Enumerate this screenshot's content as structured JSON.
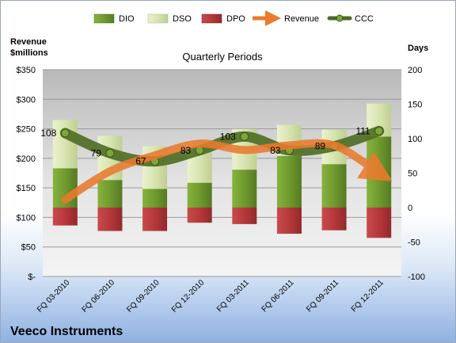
{
  "chart_data": {
    "type": "bar",
    "title": "Quarterly Periods",
    "company": "Veeco Instruments",
    "left_axis_label": [
      "Revenue",
      "$millions"
    ],
    "right_axis_label": "Days",
    "categories": [
      "FQ 03-2010",
      "FQ 06-2010",
      "FQ 09-2010",
      "FQ 12-2010",
      "FQ 03-2011",
      "FQ 06-2011",
      "FQ 09-2011",
      "FQ 12-2011"
    ],
    "left_axis": {
      "min": 0,
      "max": 350,
      "step": 50,
      "tick_labels": [
        "$-",
        "$50",
        "$100",
        "$150",
        "$200",
        "$250",
        "$300",
        "$350"
      ]
    },
    "right_axis": {
      "min": -100,
      "max": 200,
      "step": 50,
      "tick_labels": [
        "-100",
        "-50",
        "0",
        "50",
        "100",
        "150",
        "200"
      ]
    },
    "series": [
      {
        "name": "DIO",
        "axis": "right",
        "kind": "stacked-bar",
        "color": "#6f9a2e",
        "values": [
          57,
          40,
          27,
          36,
          55,
          75,
          63,
          103
        ]
      },
      {
        "name": "DSO",
        "axis": "right",
        "kind": "stacked-bar",
        "color": "#d7e4b0",
        "values": [
          70,
          64,
          62,
          60,
          59,
          45,
          50,
          48
        ]
      },
      {
        "name": "DPO",
        "axis": "right",
        "kind": "negative-bar",
        "color": "#b5383a",
        "values": [
          -26,
          -34,
          -34,
          -22,
          -24,
          -38,
          -33,
          -44
        ]
      },
      {
        "name": "Revenue",
        "axis": "left",
        "kind": "line",
        "color": "#ea7a2e",
        "values": [
          130,
          178,
          205,
          225,
          214,
          222,
          222,
          175
        ]
      },
      {
        "name": "CCC",
        "axis": "right",
        "kind": "line",
        "color": "#4e6b22",
        "values": [
          108,
          79,
          67,
          83,
          103,
          83,
          89,
          111
        ]
      }
    ],
    "data_labels": [
      "108",
      "79",
      "67",
      "83",
      "103",
      "83",
      "89",
      "111"
    ],
    "grid": true,
    "legend": "top"
  }
}
